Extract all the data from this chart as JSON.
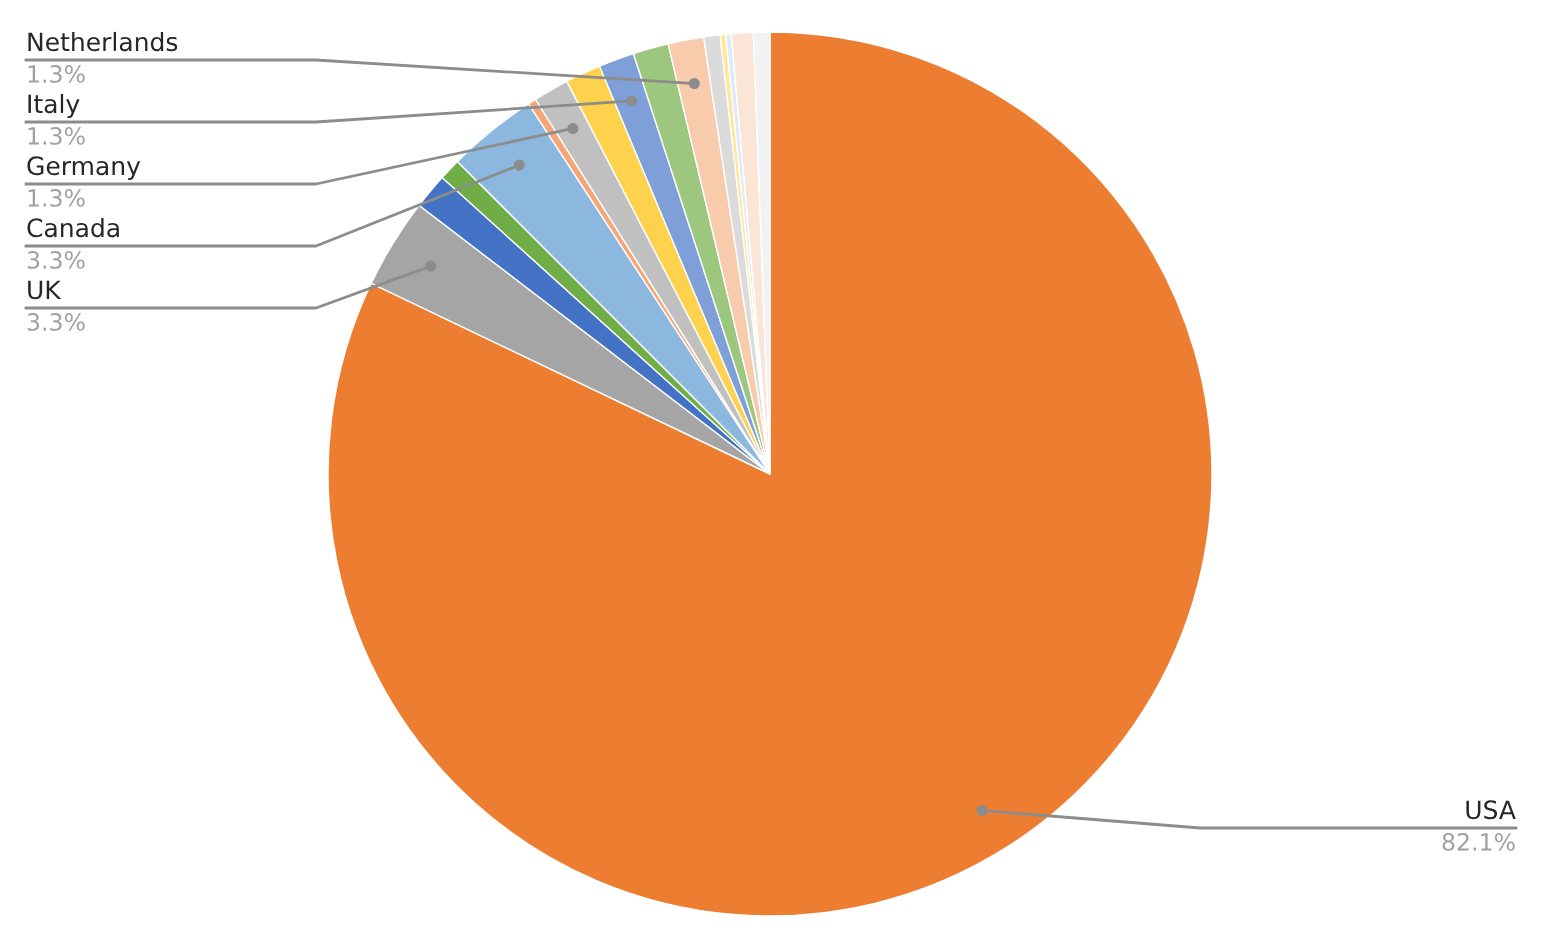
{
  "chart_data": {
    "type": "pie",
    "categories": [
      "USA",
      "UK",
      null,
      null,
      "Canada",
      null,
      "Germany",
      null,
      "Italy",
      null,
      "Netherlands",
      null,
      null,
      null,
      null,
      null
    ],
    "values": [
      82.1,
      3.3,
      1.3,
      0.8,
      3.3,
      0.3,
      1.3,
      1.3,
      1.3,
      1.3,
      1.3,
      0.6,
      0.2,
      0.2,
      0.8,
      0.6
    ],
    "value_labels": [
      "82.1%",
      "3.3%",
      null,
      null,
      "3.3%",
      null,
      "1.3%",
      null,
      "1.3%",
      null,
      "1.3%",
      null,
      null,
      null,
      null,
      null
    ],
    "colors": [
      "#ed7d31",
      "#a5a5a5",
      "#4472c4",
      "#70ad47",
      "#8cb8e0",
      "#f4a676",
      "#c0c0c0",
      "#ffd24d",
      "#7f9fd8",
      "#9dc77f",
      "#f8cbad",
      "#dbdbdb",
      "#ffe699",
      "#deebf7",
      "#fbe5d6",
      "#f2f2f2"
    ],
    "legend": false
  }
}
